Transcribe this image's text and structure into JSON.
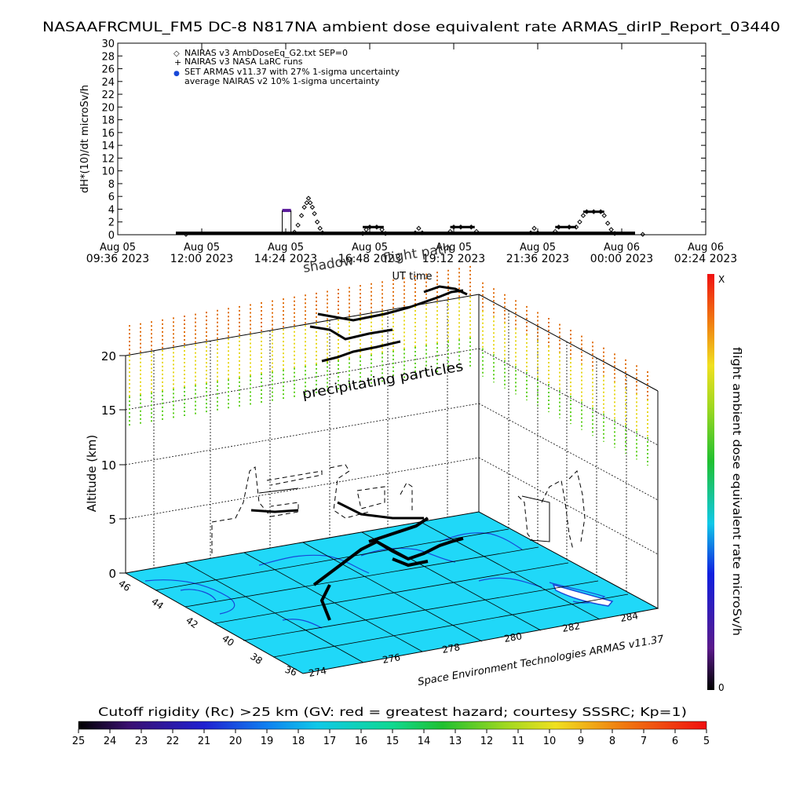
{
  "title": "NASAAFRCMUL_FM5 DC-8   N817NA ambient dose equivalent rate ARMAS_dirIP_Report_03440",
  "chart_data": [
    {
      "type": "scatter",
      "ylabel": "dH*(10)/dt microSv/h",
      "xlabel": "UT time",
      "ylim": [
        0,
        30
      ],
      "yticks": [
        0,
        2,
        4,
        6,
        8,
        10,
        12,
        14,
        16,
        18,
        20,
        22,
        24,
        26,
        28,
        30
      ],
      "xlim_hours": [
        0,
        16.8
      ],
      "xticks": [
        {
          "h": 0.0,
          "line1": "Aug 05",
          "line2": "09:36 2023"
        },
        {
          "h": 2.4,
          "line1": "Aug 05",
          "line2": "12:00 2023"
        },
        {
          "h": 4.8,
          "line1": "Aug 05",
          "line2": "14:24 2023"
        },
        {
          "h": 7.2,
          "line1": "Aug 05",
          "line2": "16:48 2023"
        },
        {
          "h": 9.6,
          "line1": "Aug 05",
          "line2": "19:12 2023"
        },
        {
          "h": 12.0,
          "line1": "Aug 05",
          "line2": "21:36 2023"
        },
        {
          "h": 14.4,
          "line1": "Aug 06",
          "line2": "00:00 2023"
        },
        {
          "h": 16.8,
          "line1": "Aug 06",
          "line2": "02:24 2023"
        }
      ],
      "legend": [
        {
          "symbol": "◇",
          "label": "NAIRAS v3 AmbDoseEq_G2.txt SEP=0"
        },
        {
          "symbol": "+",
          "label": "NAIRAS v3 NASA LaRC runs"
        },
        {
          "symbol": "●",
          "label": "SET ARMAS v11.37 with 27% 1-sigma uncertainty"
        },
        {
          "symbol": "",
          "label": "average NAIRAS v2 10% 1-sigma uncertainty"
        }
      ],
      "series": [
        {
          "name": "NAIRAS v3 AmbDoseEq_G2.txt SEP=0",
          "points": [
            [
              1.95,
              0.05
            ],
            [
              5.05,
              0.4
            ],
            [
              5.15,
              1.5
            ],
            [
              5.25,
              3.0
            ],
            [
              5.33,
              4.3
            ],
            [
              5.4,
              5.0
            ],
            [
              5.45,
              5.7
            ],
            [
              5.5,
              5.0
            ],
            [
              5.56,
              4.3
            ],
            [
              5.62,
              3.3
            ],
            [
              5.7,
              2.0
            ],
            [
              5.78,
              1.0
            ],
            [
              5.85,
              0.3
            ],
            [
              7.0,
              0.2
            ],
            [
              7.1,
              0.8
            ],
            [
              7.2,
              1.2
            ],
            [
              7.4,
              1.2
            ],
            [
              7.55,
              0.8
            ],
            [
              7.65,
              0.2
            ],
            [
              8.5,
              0.3
            ],
            [
              8.6,
              1.0
            ],
            [
              8.7,
              0.3
            ],
            [
              9.5,
              0.5
            ],
            [
              9.6,
              1.2
            ],
            [
              9.8,
              1.2
            ],
            [
              10.1,
              1.2
            ],
            [
              10.25,
              0.5
            ],
            [
              11.8,
              0.3
            ],
            [
              11.9,
              1.0
            ],
            [
              12.0,
              0.3
            ],
            [
              12.5,
              0.5
            ],
            [
              12.6,
              1.2
            ],
            [
              12.9,
              1.2
            ],
            [
              13.1,
              1.2
            ],
            [
              13.2,
              2.0
            ],
            [
              13.3,
              3.0
            ],
            [
              13.4,
              3.6
            ],
            [
              13.6,
              3.6
            ],
            [
              13.8,
              3.6
            ],
            [
              13.9,
              3.0
            ],
            [
              14.0,
              1.8
            ],
            [
              14.1,
              0.8
            ],
            [
              14.2,
              0.2
            ],
            [
              15.0,
              0.05
            ]
          ]
        },
        {
          "name": "SET ARMAS v11.37 with 27% 1-sigma uncertainty",
          "segments": [
            [
              4.7,
              4.95,
              3.8
            ]
          ]
        }
      ]
    },
    {
      "type": "scatter",
      "ylabel": "Altitude (km)",
      "zticks": [
        0,
        5,
        10,
        15,
        20
      ],
      "lat_ticks": [
        "46",
        "44",
        "42",
        "40",
        "38",
        "36"
      ],
      "lon_ticks": [
        "274",
        "276",
        "278",
        "280",
        "282",
        "284"
      ],
      "annotations": [
        "precipitating particles",
        "flight path",
        "shadow"
      ],
      "credit": "Space Environment Technologies ARMAS v11.37"
    }
  ],
  "right_colorbar": {
    "label": "flight ambient dose equivalent rate microSv/h",
    "top": "X",
    "bottom": "0"
  },
  "bottom_colorbar": {
    "title": "Cutoff rigidity (Rc) >25 km (GV: red = greatest hazard; courtesy SSSRC; Kp=1)",
    "ticks": [
      "25",
      "24",
      "23",
      "22",
      "21",
      "20",
      "19",
      "18",
      "17",
      "16",
      "15",
      "14",
      "13",
      "12",
      "11",
      "10",
      "9",
      "8",
      "7",
      "6",
      "5"
    ]
  },
  "colors": {
    "ocean": "#20d8f8",
    "coast": "#1848d8",
    "armas": "#5a1a9a",
    "orange": "#e07010",
    "yellow": "#e8d820",
    "green": "#60d020"
  }
}
